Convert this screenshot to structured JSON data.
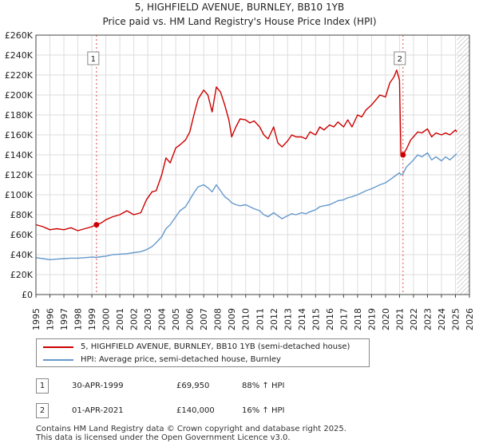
{
  "header": {
    "title": "5, HIGHFIELD AVENUE, BURNLEY, BB10 1YB",
    "subtitle": "Price paid vs. HM Land Registry's House Price Index (HPI)"
  },
  "chart_data": {
    "type": "line",
    "title": "5, HIGHFIELD AVENUE, BURNLEY, BB10 1YB",
    "subtitle": "Price paid vs. HM Land Registry's House Price Index (HPI)",
    "xlim": [
      1995,
      2026
    ],
    "ylim": [
      0,
      260000
    ],
    "x_ticks": [
      1995,
      1996,
      1997,
      1998,
      1999,
      2000,
      2001,
      2002,
      2003,
      2004,
      2005,
      2006,
      2007,
      2008,
      2009,
      2010,
      2011,
      2012,
      2013,
      2014,
      2015,
      2016,
      2017,
      2018,
      2019,
      2020,
      2021,
      2022,
      2023,
      2024,
      2025,
      2026
    ],
    "y_ticks": [
      0,
      20000,
      40000,
      60000,
      80000,
      100000,
      120000,
      140000,
      160000,
      180000,
      200000,
      220000,
      240000,
      260000
    ],
    "y_tick_labels": [
      "£0",
      "£20K",
      "£40K",
      "£60K",
      "£80K",
      "£100K",
      "£120K",
      "£140K",
      "£160K",
      "£180K",
      "£200K",
      "£220K",
      "£240K",
      "£260K"
    ],
    "grid": true,
    "series": [
      {
        "name": "5, HIGHFIELD AVENUE, BURNLEY, BB10 1YB (semi-detached house)",
        "color": "#cc0000",
        "x": [
          1995.0,
          1995.5,
          1996.0,
          1996.5,
          1997.0,
          1997.5,
          1998.0,
          1998.5,
          1999.0,
          1999.33,
          1999.7,
          2000.0,
          2000.5,
          2001.0,
          2001.5,
          2002.0,
          2002.5,
          2002.9,
          2003.3,
          2003.6,
          2004.0,
          2004.3,
          2004.6,
          2005.0,
          2005.3,
          2005.7,
          2006.0,
          2006.3,
          2006.6,
          2007.0,
          2007.3,
          2007.6,
          2007.9,
          2008.2,
          2008.5,
          2008.8,
          2009.0,
          2009.3,
          2009.6,
          2010.0,
          2010.3,
          2010.6,
          2011.0,
          2011.3,
          2011.6,
          2012.0,
          2012.3,
          2012.6,
          2013.0,
          2013.3,
          2013.6,
          2014.0,
          2014.3,
          2014.6,
          2015.0,
          2015.3,
          2015.6,
          2016.0,
          2016.3,
          2016.6,
          2017.0,
          2017.3,
          2017.6,
          2018.0,
          2018.3,
          2018.6,
          2019.0,
          2019.3,
          2019.6,
          2020.0,
          2020.3,
          2020.6,
          2020.8,
          2021.0,
          2021.1,
          2021.25,
          2021.5,
          2021.8,
          2022.0,
          2022.3,
          2022.6,
          2023.0,
          2023.3,
          2023.6,
          2024.0,
          2024.3,
          2024.6,
          2025.0,
          2025.1
        ],
        "y": [
          70000,
          68000,
          65000,
          66000,
          65000,
          67000,
          64000,
          66000,
          68000,
          69950,
          72000,
          75000,
          78000,
          80000,
          84000,
          80000,
          82000,
          95000,
          103000,
          104000,
          120000,
          137000,
          132000,
          147000,
          150000,
          155000,
          163000,
          180000,
          196000,
          205000,
          200000,
          183000,
          208000,
          203000,
          190000,
          175000,
          158000,
          168000,
          176000,
          175000,
          172000,
          174000,
          168000,
          160000,
          156000,
          168000,
          152000,
          148000,
          154000,
          160000,
          158000,
          158000,
          156000,
          163000,
          160000,
          168000,
          165000,
          170000,
          168000,
          173000,
          168000,
          175000,
          168000,
          180000,
          178000,
          185000,
          190000,
          195000,
          200000,
          198000,
          212000,
          218000,
          225000,
          215000,
          140000,
          140000,
          146000,
          155000,
          158000,
          163000,
          162000,
          166000,
          158000,
          162000,
          160000,
          162000,
          160000,
          165000,
          163000
        ]
      },
      {
        "name": "HPI: Average price, semi-detached house, Burnley",
        "color": "#6699cc",
        "x": [
          1995.0,
          1995.5,
          1996.0,
          1996.5,
          1997.0,
          1997.5,
          1998.0,
          1998.5,
          1999.0,
          1999.33,
          1999.7,
          2000.0,
          2000.5,
          2001.0,
          2001.5,
          2002.0,
          2002.5,
          2002.9,
          2003.3,
          2003.6,
          2004.0,
          2004.3,
          2004.6,
          2005.0,
          2005.3,
          2005.7,
          2006.0,
          2006.3,
          2006.6,
          2007.0,
          2007.3,
          2007.6,
          2007.9,
          2008.2,
          2008.5,
          2008.8,
          2009.0,
          2009.3,
          2009.6,
          2010.0,
          2010.3,
          2010.6,
          2011.0,
          2011.3,
          2011.6,
          2012.0,
          2012.3,
          2012.6,
          2013.0,
          2013.3,
          2013.6,
          2014.0,
          2014.3,
          2014.6,
          2015.0,
          2015.3,
          2015.6,
          2016.0,
          2016.3,
          2016.6,
          2017.0,
          2017.3,
          2017.6,
          2018.0,
          2018.3,
          2018.6,
          2019.0,
          2019.3,
          2019.6,
          2020.0,
          2020.3,
          2020.6,
          2020.8,
          2021.0,
          2021.1,
          2021.25,
          2021.5,
          2021.8,
          2022.0,
          2022.3,
          2022.6,
          2023.0,
          2023.3,
          2023.6,
          2024.0,
          2024.3,
          2024.6,
          2025.0,
          2025.1
        ],
        "y": [
          37000,
          36000,
          35000,
          35500,
          36000,
          36500,
          36500,
          37000,
          37500,
          37200,
          38000,
          38500,
          40000,
          40500,
          41000,
          42000,
          43000,
          45000,
          48000,
          52000,
          58000,
          66000,
          70000,
          78000,
          84000,
          88000,
          95000,
          102000,
          108000,
          110000,
          107000,
          103000,
          110000,
          104000,
          98000,
          95000,
          92000,
          90000,
          89000,
          90000,
          88000,
          86000,
          84000,
          80000,
          78000,
          82000,
          79000,
          76000,
          79000,
          81000,
          80000,
          82000,
          81000,
          83000,
          85000,
          88000,
          89000,
          90000,
          92000,
          94000,
          95000,
          97000,
          98000,
          100000,
          102000,
          104000,
          106000,
          108000,
          110000,
          112000,
          115000,
          118000,
          120000,
          122000,
          120000,
          121000,
          128000,
          132000,
          135000,
          140000,
          138000,
          142000,
          135000,
          138000,
          134000,
          138000,
          135000,
          140000,
          141000
        ]
      }
    ],
    "sales": [
      {
        "label": "1",
        "x": 1999.33,
        "y": 69950
      },
      {
        "label": "2",
        "x": 2021.25,
        "y": 140000
      }
    ]
  },
  "legend": {
    "property_label": "5, HIGHFIELD AVENUE, BURNLEY, BB10 1YB (semi-detached house)",
    "hpi_label": "HPI: Average price, semi-detached house, Burnley"
  },
  "transactions": [
    {
      "num": "1",
      "date": "30-APR-1999",
      "price": "£69,950",
      "hpi": "88% ↑ HPI"
    },
    {
      "num": "2",
      "date": "01-APR-2021",
      "price": "£140,000",
      "hpi": "16% ↑ HPI"
    }
  ],
  "footer": {
    "line1": "Contains HM Land Registry data © Crown copyright and database right 2025.",
    "line2": "This data is licensed under the Open Government Licence v3.0."
  }
}
